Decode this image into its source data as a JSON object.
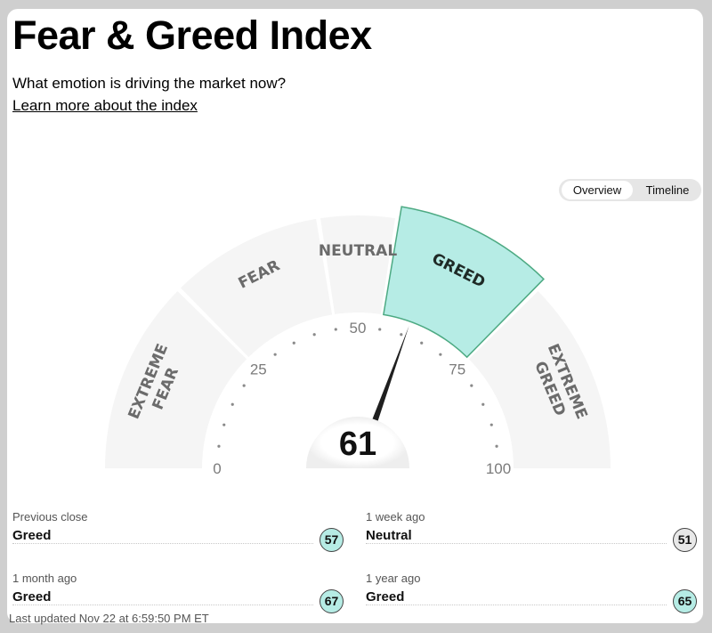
{
  "header": {
    "title": "Fear & Greed Index",
    "subtitle": "What emotion is driving the market now?",
    "learn_more": "Learn more about the index"
  },
  "toggle": {
    "overview": "Overview",
    "timeline": "Timeline",
    "active": "Overview"
  },
  "gauge": {
    "value": 61,
    "value_text": "61",
    "min": 0,
    "max": 100,
    "segments": [
      {
        "lines": [
          "EXTREME",
          "FEAR"
        ],
        "from": 0,
        "to": 25
      },
      {
        "lines": [
          "FEAR"
        ],
        "from": 25,
        "to": 45
      },
      {
        "lines": [
          "NEUTRAL"
        ],
        "from": 45,
        "to": 55
      },
      {
        "lines": [
          "GREED"
        ],
        "from": 55,
        "to": 75
      },
      {
        "lines": [
          "EXTREME",
          "GREED"
        ],
        "from": 75,
        "to": 100
      }
    ],
    "active_segment": "GREED",
    "tick_labels": [
      "0",
      "25",
      "50",
      "75",
      "100"
    ],
    "colors": {
      "segment": "#f5f5f5",
      "active_segment": "#b6ece5",
      "active_border": "#4daa83",
      "needle": "#1f1f1f",
      "dots": "#8a8a8a"
    }
  },
  "history": [
    {
      "when": "Previous close",
      "rating": "Greed",
      "value": "57",
      "style": "greed"
    },
    {
      "when": "1 week ago",
      "rating": "Neutral",
      "value": "51",
      "style": "neutral"
    },
    {
      "when": "1 month ago",
      "rating": "Greed",
      "value": "67",
      "style": "greed"
    },
    {
      "when": "1 year ago",
      "rating": "Greed",
      "value": "65",
      "style": "greed"
    }
  ],
  "footer": {
    "last_updated": "Last updated Nov 22 at 6:59:50 PM ET"
  }
}
